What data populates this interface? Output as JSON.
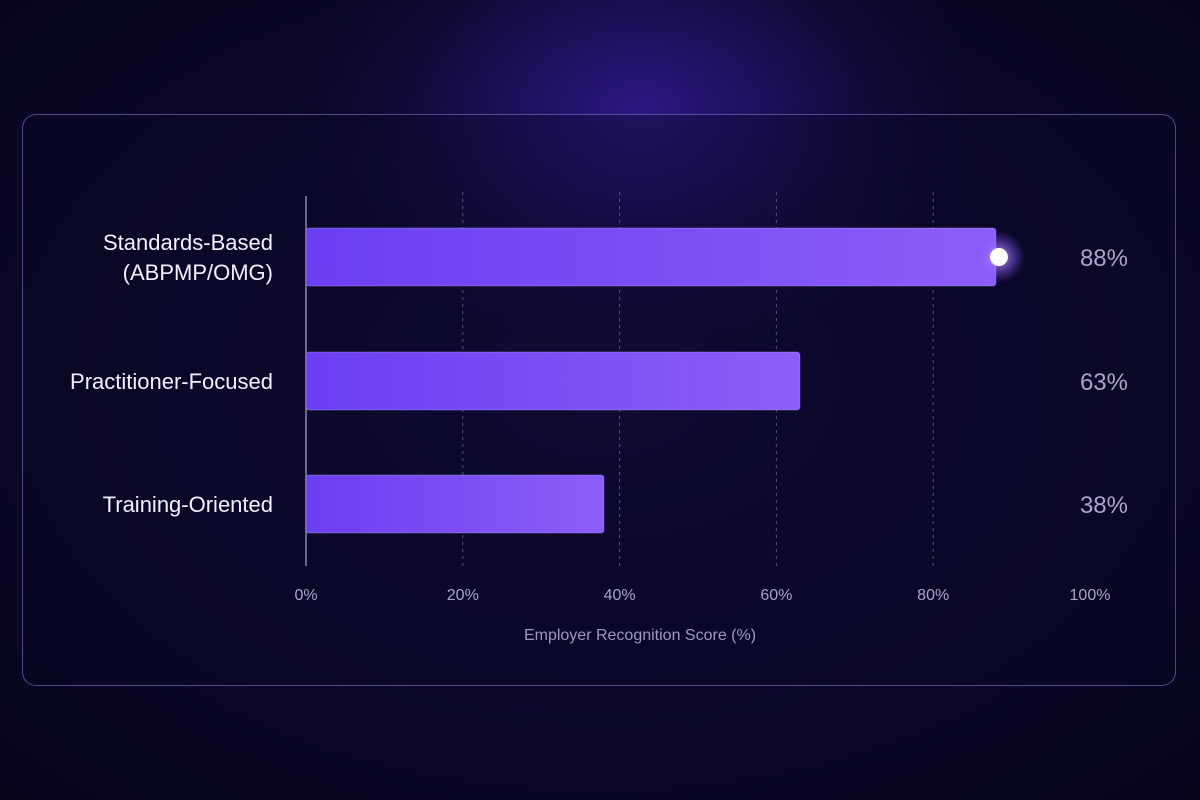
{
  "chart_data": {
    "type": "bar",
    "orientation": "horizontal",
    "categories": [
      [
        "Standards-Based",
        "(ABPMP/OMG)"
      ],
      [
        "Practitioner-Focused"
      ],
      [
        "Training-Oriented"
      ]
    ],
    "values": [
      88,
      63,
      38
    ],
    "value_labels": [
      "88%",
      "63%",
      "38%"
    ],
    "xlabel": "Employer Recognition Score (%)",
    "xlim": [
      0,
      100
    ],
    "xticks": [
      "0%",
      "20%",
      "40%",
      "60%",
      "80%",
      "100%"
    ],
    "grid": "vertical dashed",
    "highlight": "Standards-Based (ABPMP/OMG)"
  }
}
